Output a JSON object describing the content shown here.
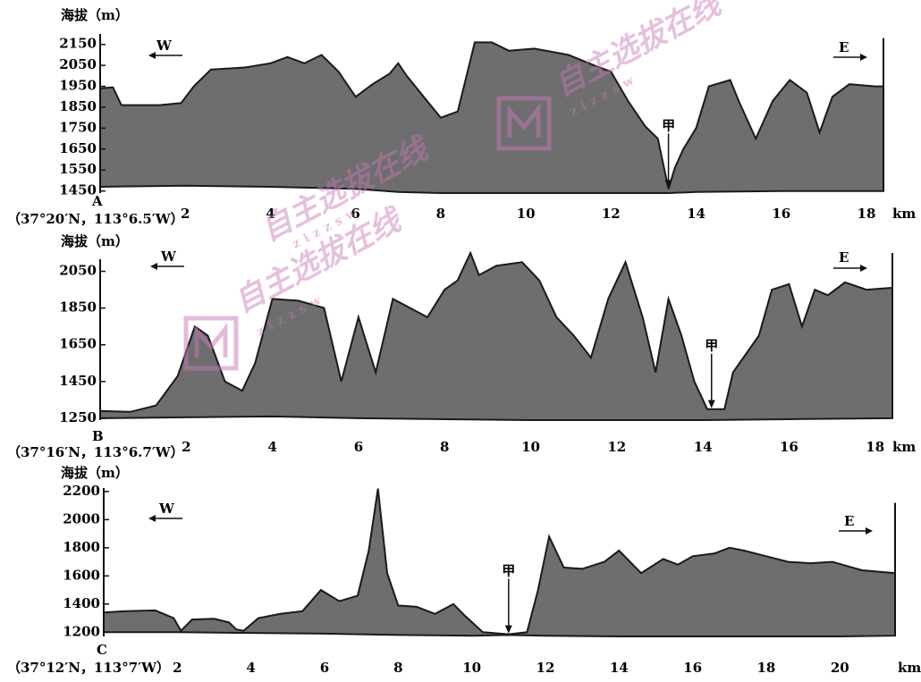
{
  "chart_data": [
    {
      "type": "area",
      "ylabel": "海拔（m）",
      "xunit": "km",
      "origin_label": "A",
      "coords": "（37°20′N，113°6.5′W）",
      "dir_left": "W",
      "dir_right": "E",
      "marker": "甲",
      "marker_x": 13.35,
      "xlim": [
        0,
        18.4
      ],
      "ylim": [
        1440,
        2200
      ],
      "yticks": [
        1450,
        1550,
        1650,
        1750,
        1850,
        1950,
        2050,
        2150
      ],
      "xticks": [
        2,
        4,
        6,
        8,
        10,
        12,
        14,
        16,
        18
      ],
      "profile": [
        [
          0,
          1940
        ],
        [
          0.3,
          1945
        ],
        [
          0.5,
          1860
        ],
        [
          1.4,
          1860
        ],
        [
          1.9,
          1870
        ],
        [
          2.2,
          1950
        ],
        [
          2.6,
          2030
        ],
        [
          3.4,
          2040
        ],
        [
          4.0,
          2060
        ],
        [
          4.4,
          2090
        ],
        [
          4.8,
          2060
        ],
        [
          5.2,
          2100
        ],
        [
          5.6,
          2020
        ],
        [
          6.0,
          1900
        ],
        [
          6.4,
          1960
        ],
        [
          6.8,
          2010
        ],
        [
          7.0,
          2060
        ],
        [
          7.2,
          2000
        ],
        [
          7.6,
          1900
        ],
        [
          8.0,
          1800
        ],
        [
          8.4,
          1830
        ],
        [
          8.8,
          2160
        ],
        [
          9.2,
          2160
        ],
        [
          9.6,
          2120
        ],
        [
          10.2,
          2130
        ],
        [
          11.0,
          2100
        ],
        [
          11.6,
          2050
        ],
        [
          12.0,
          2020
        ],
        [
          12.4,
          1880
        ],
        [
          12.8,
          1760
        ],
        [
          13.1,
          1700
        ],
        [
          13.35,
          1460
        ],
        [
          13.5,
          1560
        ],
        [
          13.7,
          1650
        ],
        [
          14.0,
          1750
        ],
        [
          14.3,
          1950
        ],
        [
          14.8,
          1980
        ],
        [
          15.0,
          1880
        ],
        [
          15.4,
          1700
        ],
        [
          15.8,
          1880
        ],
        [
          16.2,
          1980
        ],
        [
          16.6,
          1920
        ],
        [
          16.9,
          1730
        ],
        [
          17.2,
          1900
        ],
        [
          17.6,
          1960
        ],
        [
          18.2,
          1950
        ],
        [
          18.4,
          1950
        ]
      ],
      "base": [
        [
          0,
          1470
        ],
        [
          2,
          1475
        ],
        [
          4,
          1470
        ],
        [
          6,
          1460
        ],
        [
          7,
          1445
        ],
        [
          8,
          1440
        ],
        [
          10,
          1440
        ],
        [
          12,
          1440
        ],
        [
          13.35,
          1440
        ],
        [
          14,
          1445
        ],
        [
          16,
          1450
        ],
        [
          18.4,
          1450
        ]
      ],
      "right_wall_top": 2180
    },
    {
      "type": "area",
      "ylabel": "海拔（m）",
      "xunit": "km",
      "origin_label": "B",
      "coords": "（37°16′N，113°6.7′W）",
      "dir_left": "W",
      "dir_right": "E",
      "marker": "甲",
      "marker_x": 14.2,
      "xlim": [
        0,
        18.4
      ],
      "ylim": [
        1240,
        2150
      ],
      "yticks": [
        1250,
        1450,
        1650,
        1850,
        2050
      ],
      "xticks": [
        2,
        4,
        6,
        8,
        10,
        12,
        14,
        16,
        18
      ],
      "profile": [
        [
          0,
          1290
        ],
        [
          0.7,
          1285
        ],
        [
          1.3,
          1320
        ],
        [
          1.8,
          1480
        ],
        [
          2.2,
          1750
        ],
        [
          2.5,
          1700
        ],
        [
          2.9,
          1450
        ],
        [
          3.3,
          1400
        ],
        [
          3.6,
          1550
        ],
        [
          4.0,
          1900
        ],
        [
          4.6,
          1890
        ],
        [
          5.2,
          1850
        ],
        [
          5.6,
          1450
        ],
        [
          6.0,
          1800
        ],
        [
          6.4,
          1500
        ],
        [
          6.8,
          1900
        ],
        [
          7.2,
          1850
        ],
        [
          7.6,
          1800
        ],
        [
          8.0,
          1950
        ],
        [
          8.3,
          2000
        ],
        [
          8.6,
          2150
        ],
        [
          8.8,
          2030
        ],
        [
          9.2,
          2080
        ],
        [
          9.8,
          2100
        ],
        [
          10.2,
          2000
        ],
        [
          10.6,
          1800
        ],
        [
          11.0,
          1700
        ],
        [
          11.4,
          1580
        ],
        [
          11.8,
          1900
        ],
        [
          12.2,
          2100
        ],
        [
          12.6,
          1800
        ],
        [
          12.9,
          1500
        ],
        [
          13.2,
          1900
        ],
        [
          13.5,
          1700
        ],
        [
          13.8,
          1450
        ],
        [
          14.1,
          1300
        ],
        [
          14.5,
          1300
        ],
        [
          14.7,
          1500
        ],
        [
          15.0,
          1600
        ],
        [
          15.3,
          1700
        ],
        [
          15.6,
          1950
        ],
        [
          16.0,
          1980
        ],
        [
          16.3,
          1750
        ],
        [
          16.6,
          1950
        ],
        [
          16.9,
          1920
        ],
        [
          17.3,
          1990
        ],
        [
          17.8,
          1950
        ],
        [
          18.4,
          1960
        ]
      ],
      "base": [
        [
          0,
          1250
        ],
        [
          2,
          1255
        ],
        [
          4,
          1260
        ],
        [
          6,
          1250
        ],
        [
          8,
          1245
        ],
        [
          10,
          1240
        ],
        [
          12,
          1240
        ],
        [
          14,
          1240
        ],
        [
          16,
          1245
        ],
        [
          18.4,
          1250
        ]
      ],
      "right_wall_top": 2150
    },
    {
      "type": "area",
      "ylabel": "海拔（m）",
      "xunit": "km",
      "origin_label": "C",
      "coords": "（37°12′N，113°7′W）",
      "dir_left": "W",
      "dir_right": "E",
      "marker": "甲",
      "marker_x": 11.0,
      "xlim": [
        0,
        21.5
      ],
      "ylim": [
        1170,
        2250
      ],
      "yticks": [
        1200,
        1400,
        1600,
        1800,
        2000,
        2200
      ],
      "xticks": [
        2,
        4,
        6,
        8,
        10,
        12,
        14,
        16,
        18,
        20
      ],
      "profile": [
        [
          0,
          1340
        ],
        [
          0.6,
          1350
        ],
        [
          1.4,
          1355
        ],
        [
          1.9,
          1300
        ],
        [
          2.1,
          1210
        ],
        [
          2.4,
          1290
        ],
        [
          3.0,
          1295
        ],
        [
          3.4,
          1270
        ],
        [
          3.6,
          1220
        ],
        [
          3.8,
          1210
        ],
        [
          4.2,
          1300
        ],
        [
          4.8,
          1330
        ],
        [
          5.4,
          1350
        ],
        [
          5.9,
          1500
        ],
        [
          6.4,
          1420
        ],
        [
          6.9,
          1460
        ],
        [
          7.2,
          1780
        ],
        [
          7.45,
          2220
        ],
        [
          7.7,
          1620
        ],
        [
          8.0,
          1390
        ],
        [
          8.5,
          1380
        ],
        [
          9.0,
          1330
        ],
        [
          9.5,
          1400
        ],
        [
          9.8,
          1320
        ],
        [
          10.3,
          1200
        ],
        [
          11.0,
          1185
        ],
        [
          11.5,
          1200
        ],
        [
          11.8,
          1500
        ],
        [
          12.1,
          1880
        ],
        [
          12.5,
          1660
        ],
        [
          13.0,
          1650
        ],
        [
          13.6,
          1700
        ],
        [
          14.0,
          1780
        ],
        [
          14.6,
          1620
        ],
        [
          15.2,
          1720
        ],
        [
          15.6,
          1680
        ],
        [
          16.0,
          1740
        ],
        [
          16.6,
          1760
        ],
        [
          17.0,
          1800
        ],
        [
          17.4,
          1780
        ],
        [
          18.0,
          1740
        ],
        [
          18.6,
          1700
        ],
        [
          19.2,
          1690
        ],
        [
          19.8,
          1700
        ],
        [
          20.6,
          1640
        ],
        [
          21.5,
          1620
        ]
      ],
      "base": [
        [
          0,
          1200
        ],
        [
          2,
          1200
        ],
        [
          4,
          1195
        ],
        [
          6,
          1190
        ],
        [
          8,
          1180
        ],
        [
          10,
          1175
        ],
        [
          11,
          1180
        ],
        [
          12,
          1175
        ],
        [
          14,
          1170
        ],
        [
          16,
          1170
        ],
        [
          18,
          1170
        ],
        [
          20,
          1170
        ],
        [
          21.5,
          1175
        ]
      ],
      "right_wall_top": 2120
    }
  ],
  "watermark": {
    "text": "自主选拔在线",
    "url": "zizzsw",
    "color": "#c77ab8"
  }
}
